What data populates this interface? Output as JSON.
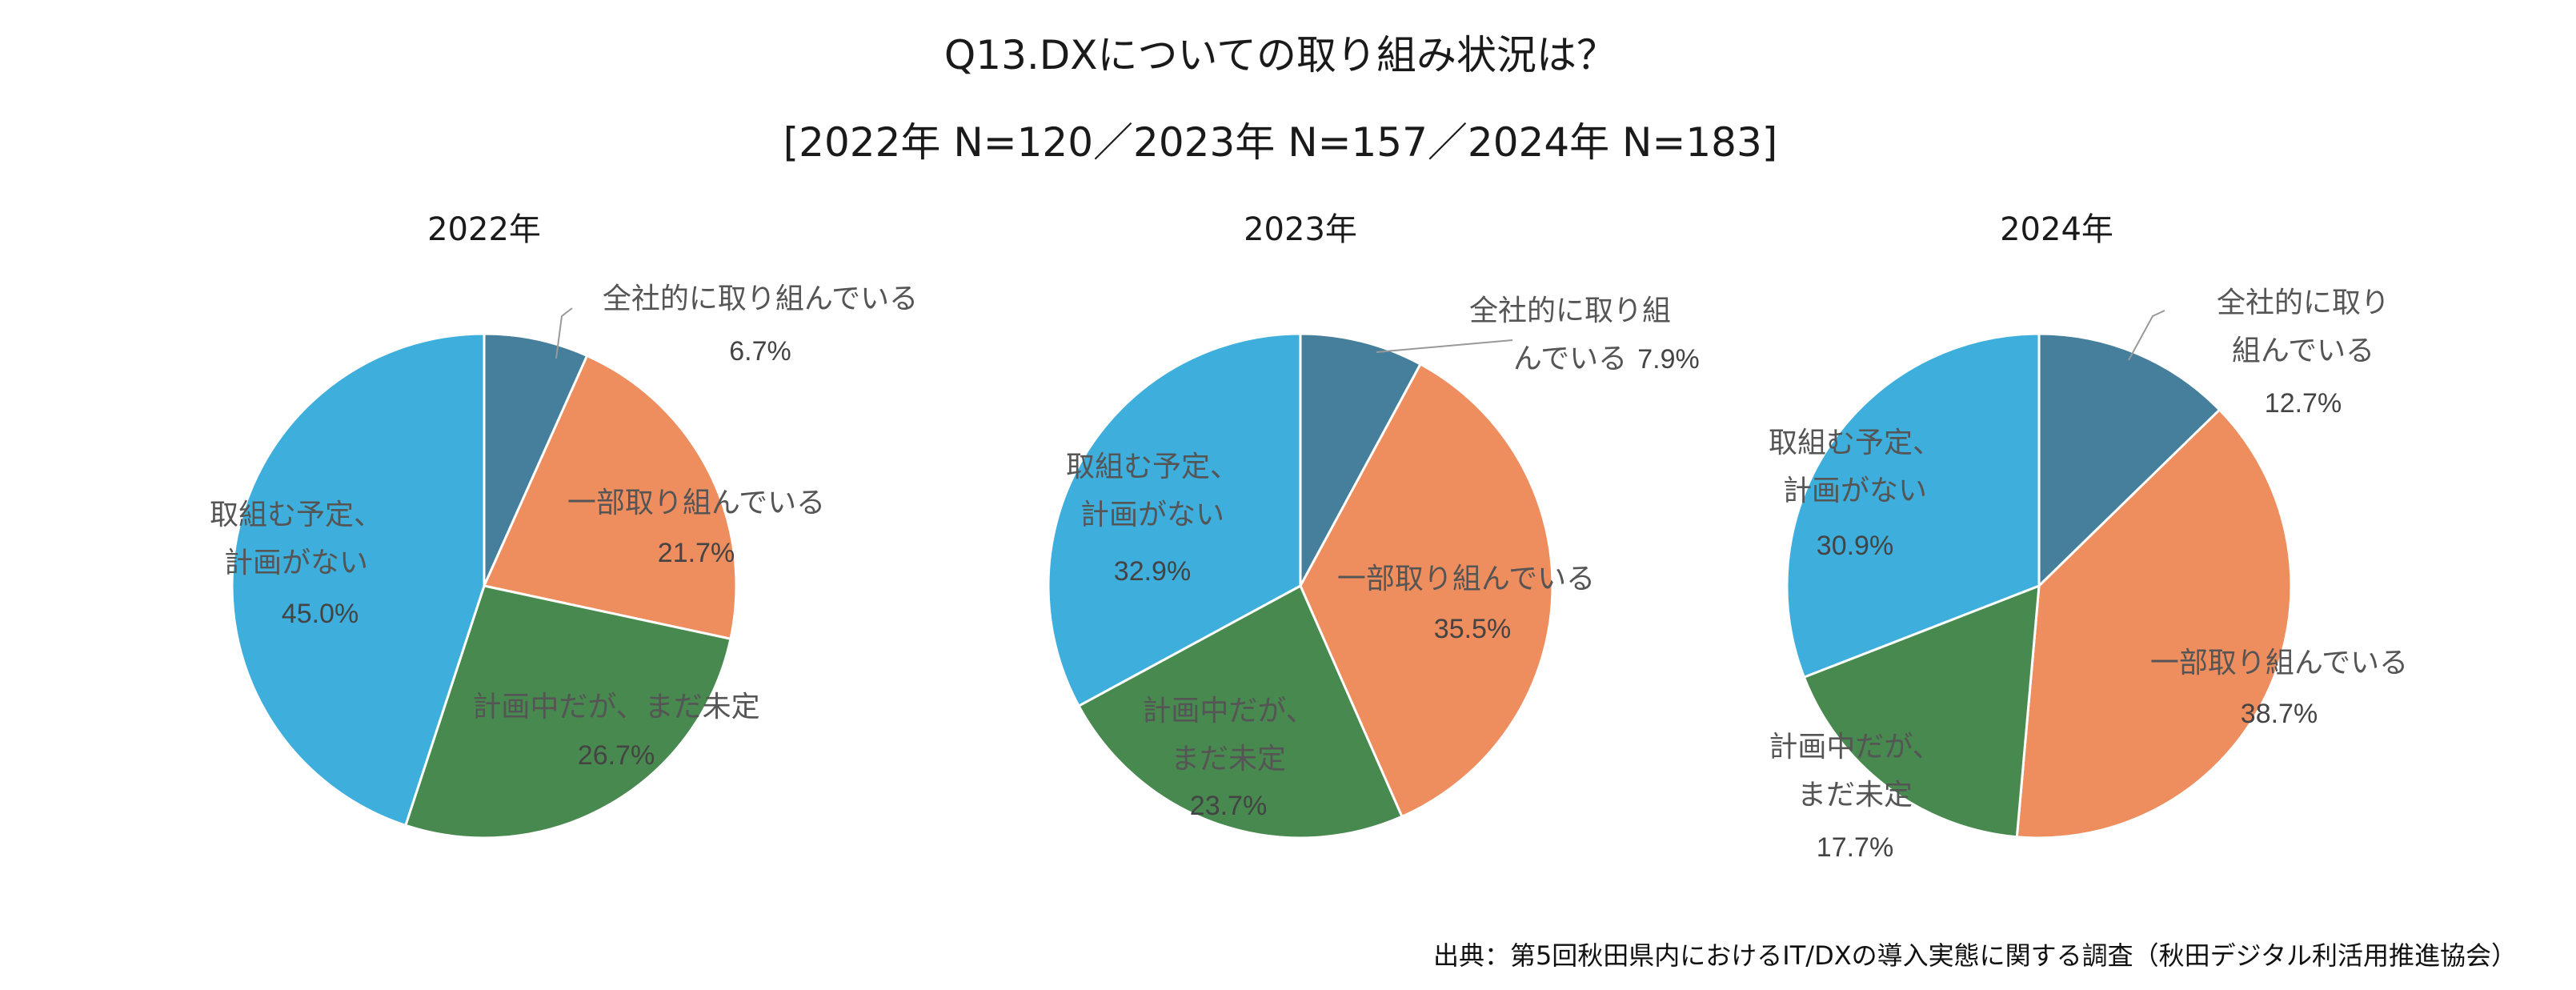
{
  "title_line1": "Q13.DXについての取り組み状況は？",
  "title_line2": "[2022年 N=120／2023年 N=157／2024年 N=183]",
  "source": "出典：第5回秋田県内におけるIT/DXの導入実態に関する調査（秋田デジタル利活用推進協会）",
  "colors": {
    "全社的に取り組んでいる": "#457f9b",
    "一部取り組んでいる": "#ee8d5d",
    "計画中だが、まだ未定": "#47894e",
    "取組む予定、計画がない": "#3eaedc"
  },
  "chart_data": [
    {
      "type": "pie",
      "title": "2022年",
      "categories": [
        "全社的に取り組んでいる",
        "一部取り組んでいる",
        "計画中だが、まだ未定",
        "取組む予定、計画がない"
      ],
      "values": [
        6.7,
        21.7,
        26.7,
        45.0
      ],
      "labels": [
        {
          "name_lines": [
            "全社的に取り組んでいる"
          ],
          "value": "6.7%"
        },
        {
          "name_lines": [
            "一部取り組んでいる"
          ],
          "value": "21.7%"
        },
        {
          "name_lines": [
            "計画中だが、まだ未定"
          ],
          "value": "26.7%"
        },
        {
          "name_lines": [
            "取組む予定、",
            "計画がない"
          ],
          "value": "45.0%"
        }
      ]
    },
    {
      "type": "pie",
      "title": "2023年",
      "categories": [
        "全社的に取り組んでいる",
        "一部取り組んでいる",
        "計画中だが、まだ未定",
        "取組む予定、計画がない"
      ],
      "values": [
        7.9,
        35.5,
        23.7,
        32.9
      ],
      "labels": [
        {
          "name_lines": [
            "全社的に取り組",
            "んでいる"
          ],
          "value": "7.9%"
        },
        {
          "name_lines": [
            "一部取り組んでいる"
          ],
          "value": "35.5%"
        },
        {
          "name_lines": [
            "計画中だが、",
            "まだ未定"
          ],
          "value": "23.7%"
        },
        {
          "name_lines": [
            "取組む予定、",
            "計画がない"
          ],
          "value": "32.9%"
        }
      ]
    },
    {
      "type": "pie",
      "title": "2024年",
      "categories": [
        "全社的に取り組んでいる",
        "一部取り組んでいる",
        "計画中だが、まだ未定",
        "取組む予定、計画がない"
      ],
      "values": [
        12.7,
        38.7,
        17.7,
        30.9
      ],
      "labels": [
        {
          "name_lines": [
            "全社的に取り",
            "組んでいる"
          ],
          "value": "12.7%"
        },
        {
          "name_lines": [
            "一部取り組んでいる"
          ],
          "value": "38.7%"
        },
        {
          "name_lines": [
            "計画中だが、",
            "まだ未定"
          ],
          "value": "17.7%"
        },
        {
          "name_lines": [
            "取組む予定、",
            "計画がない"
          ],
          "value": "30.9%"
        }
      ]
    }
  ]
}
